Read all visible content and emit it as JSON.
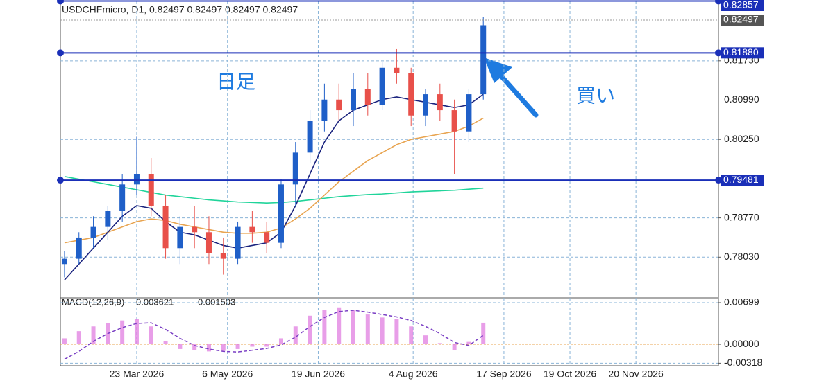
{
  "chart_data": [
    {
      "type": "candlestick",
      "title": "USDCHFmicro, D1, 0.82497 0.82497 0.82497 0.82497",
      "annotations": [
        "日足",
        "買い"
      ],
      "xlim": [
        "2026-02-14",
        "2026-12-30"
      ],
      "x": [
        "2026-02-16",
        "2026-02-23",
        "2026-03-02",
        "2026-03-09",
        "2026-03-16",
        "2026-03-23",
        "2026-03-30",
        "2026-04-06",
        "2026-04-13",
        "2026-04-20",
        "2026-04-27",
        "2026-05-04",
        "2026-05-11",
        "2026-05-18",
        "2026-05-25",
        "2026-06-01",
        "2026-06-08",
        "2026-06-15",
        "2026-06-22",
        "2026-06-29",
        "2026-07-06",
        "2026-07-13",
        "2026-07-20",
        "2026-07-27",
        "2026-08-03",
        "2026-08-10",
        "2026-08-17",
        "2026-08-24",
        "2026-08-31",
        "2026-09-07"
      ],
      "open": [
        0.779,
        0.78,
        0.784,
        0.786,
        0.789,
        0.794,
        0.796,
        0.79,
        0.782,
        0.786,
        0.785,
        0.781,
        0.78,
        0.786,
        0.785,
        0.783,
        0.794,
        0.8,
        0.806,
        0.81,
        0.808,
        0.812,
        0.809,
        0.816,
        0.815,
        0.807,
        0.811,
        0.808,
        0.804,
        0.811
      ],
      "high": [
        0.7815,
        0.785,
        0.788,
        0.79,
        0.796,
        0.803,
        0.799,
        0.792,
        0.788,
        0.79,
        0.788,
        0.784,
        0.787,
        0.789,
        0.787,
        0.795,
        0.802,
        0.808,
        0.813,
        0.813,
        0.815,
        0.815,
        0.817,
        0.8195,
        0.816,
        0.812,
        0.813,
        0.81,
        0.812,
        0.8255
      ],
      "low": [
        0.7765,
        0.779,
        0.782,
        0.7835,
        0.787,
        0.792,
        0.788,
        0.78,
        0.779,
        0.782,
        0.779,
        0.777,
        0.779,
        0.783,
        0.781,
        0.782,
        0.79,
        0.798,
        0.804,
        0.806,
        0.805,
        0.807,
        0.808,
        0.813,
        0.805,
        0.805,
        0.806,
        0.796,
        0.802,
        0.81
      ],
      "close": [
        0.78,
        0.784,
        0.786,
        0.789,
        0.794,
        0.796,
        0.79,
        0.782,
        0.786,
        0.785,
        0.781,
        0.78,
        0.786,
        0.785,
        0.783,
        0.794,
        0.8,
        0.806,
        0.81,
        0.808,
        0.812,
        0.809,
        0.816,
        0.815,
        0.807,
        0.811,
        0.808,
        0.804,
        0.811,
        0.824
      ],
      "up_color": "#1f5fc8",
      "down_color": "#e8504a",
      "series": [
        {
          "color": "#20d49a",
          "values": [
            0.7955,
            0.795,
            0.7945,
            0.794,
            0.7935,
            0.793,
            0.7925,
            0.792,
            0.7917,
            0.7914,
            0.7911,
            0.7909,
            0.7907,
            0.7906,
            0.7905,
            0.7906,
            0.7908,
            0.7911,
            0.7914,
            0.7917,
            0.7919,
            0.7921,
            0.7922,
            0.7924,
            0.7926,
            0.7927,
            0.7928,
            0.7929,
            0.7931,
            0.7933
          ]
        },
        {
          "color": "#e8a450",
          "values": [
            0.783,
            0.7835,
            0.784,
            0.785,
            0.786,
            0.787,
            0.7875,
            0.7872,
            0.7865,
            0.786,
            0.7855,
            0.785,
            0.7848,
            0.7848,
            0.785,
            0.7858,
            0.7875,
            0.7895,
            0.792,
            0.7945,
            0.7965,
            0.7985,
            0.8,
            0.8015,
            0.8025,
            0.803,
            0.8035,
            0.804,
            0.805,
            0.8065
          ]
        },
        {
          "color": "#1a237e",
          "values": [
            0.776,
            0.779,
            0.782,
            0.785,
            0.788,
            0.79,
            0.7895,
            0.787,
            0.785,
            0.7845,
            0.7835,
            0.7825,
            0.782,
            0.7825,
            0.783,
            0.785,
            0.79,
            0.796,
            0.802,
            0.806,
            0.808,
            0.809,
            0.81,
            0.8105,
            0.81,
            0.8095,
            0.809,
            0.8085,
            0.809,
            0.811
          ]
        }
      ],
      "ylim": [
        0.7729,
        0.8285
      ],
      "yticks": [
        {
          "value": 0.7803,
          "label": "0.78030"
        },
        {
          "value": 0.7877,
          "label": "0.78770"
        },
        {
          "value": 0.8025,
          "label": "0.80250"
        },
        {
          "value": 0.8099,
          "label": "0.80990"
        },
        {
          "value": 0.8173,
          "label": "0.81730"
        }
      ],
      "hlines": [
        0.82857,
        {
          "value": 0.8188,
          "label": "0.81880"
        },
        0.79481
      ],
      "hline_color": "#1a2fb8",
      "current_price": 0.82497,
      "grid": true
    },
    {
      "type": "bar",
      "title": "MACD(12,26,9)",
      "xlim": [
        "2026-02-14",
        "2026-12-30"
      ],
      "x": [
        "2026-02-16",
        "2026-02-23",
        "2026-03-02",
        "2026-03-09",
        "2026-03-16",
        "2026-03-23",
        "2026-03-30",
        "2026-04-06",
        "2026-04-13",
        "2026-04-20",
        "2026-04-27",
        "2026-05-04",
        "2026-05-11",
        "2026-05-18",
        "2026-05-25",
        "2026-06-01",
        "2026-06-08",
        "2026-06-15",
        "2026-06-22",
        "2026-06-29",
        "2026-07-06",
        "2026-07-13",
        "2026-07-20",
        "2026-07-27",
        "2026-08-03",
        "2026-08-10",
        "2026-08-17",
        "2026-08-24",
        "2026-08-31",
        "2026-09-07"
      ],
      "series": [
        {
          "type": "bar",
          "color": "#e07ee0",
          "values": [
            0.001,
            0.0022,
            0.003,
            0.0035,
            0.004,
            0.0042,
            0.003,
            0.0005,
            -0.0008,
            -0.001,
            -0.0012,
            -0.0011,
            -0.0008,
            -0.0004,
            -0.0004,
            0.001,
            0.003,
            0.0048,
            0.0058,
            0.0062,
            0.0058,
            0.005,
            0.0045,
            0.0042,
            0.003,
            0.0015,
            0.0002,
            -0.001,
            0.0004,
            0.003621
          ]
        },
        {
          "type": "line",
          "color": "#7a3fc4",
          "values": [
            -0.0025,
            -0.0012,
            0.0005,
            0.0018,
            0.0028,
            0.0035,
            0.0036,
            0.0025,
            0.001,
            -0.0002,
            -0.0008,
            -0.0012,
            -0.0013,
            -0.001,
            -0.0007,
            -0.0001,
            0.0012,
            0.003,
            0.0045,
            0.0055,
            0.0057,
            0.0054,
            0.005,
            0.0046,
            0.004,
            0.003,
            0.0018,
            0.0003,
            -0.0002,
            0.001503
          ]
        }
      ],
      "ylim": [
        -0.0036,
        0.0078
      ],
      "yticks": [
        0.00699,
        {
          "value": 0,
          "label": "0.00000"
        },
        -0.00318
      ],
      "zero_line_color": "#e8a450",
      "xticks": [
        {
          "value": "2026-03-23",
          "label": "23 Mar 2026"
        },
        {
          "value": "2026-05-06",
          "label": "6 May 2026"
        },
        {
          "value": "2026-06-19",
          "label": "19 Jun 2026"
        },
        {
          "value": "2026-08-04",
          "label": "4 Aug 2026"
        },
        {
          "value": "2026-09-17",
          "label": "17 Sep 2026"
        },
        {
          "value": "2026-10-19",
          "label": "19 Oct 2026"
        },
        {
          "value": "2026-11-20",
          "label": "20 Nov 2026"
        }
      ],
      "grid": true
    }
  ]
}
